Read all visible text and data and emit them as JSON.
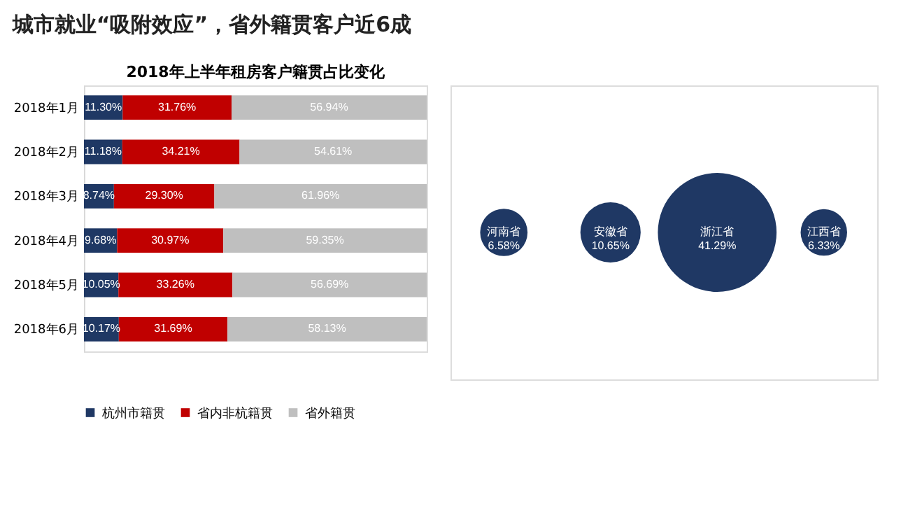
{
  "chart_data": [
    {
      "type": "bar",
      "orientation": "horizontal",
      "stacked": true,
      "title": "2018年上半年租房客户籍贯占比变化",
      "annotations": [
        "城市就业“吸附效应”，省外籍贯客户近6成"
      ],
      "categories": [
        "2018年1月",
        "2018年2月",
        "2018年3月",
        "2018年4月",
        "2018年5月",
        "2018年6月"
      ],
      "series": [
        {
          "name": "杭州市籍贯",
          "color": "#1f3864",
          "values": [
            11.3,
            11.18,
            8.74,
            9.68,
            10.05,
            10.17
          ],
          "value_labels": [
            "11.30%",
            "11.18%",
            "8.74%",
            "9.68%",
            "10.05%",
            "10.17%"
          ]
        },
        {
          "name": "省内非杭籍贯",
          "color": "#c00000",
          "values": [
            31.76,
            34.21,
            29.3,
            30.97,
            33.26,
            31.69
          ],
          "value_labels": [
            "31.76%",
            "34.21%",
            "29.30%",
            "30.97%",
            "33.26%",
            "31.69%"
          ]
        },
        {
          "name": "省外籍贯",
          "color": "#bfbfbf",
          "values": [
            56.94,
            54.61,
            61.96,
            59.35,
            56.69,
            58.13
          ],
          "value_labels": [
            "56.94%",
            "54.61%",
            "61.96%",
            "59.35%",
            "56.69%",
            "58.13%"
          ]
        }
      ],
      "legend": "bottom",
      "tick_labels": "y"
    },
    {
      "type": "other",
      "categories": [
        "河南省",
        "安徽省",
        "浙江省",
        "江西省"
      ],
      "values": [
        6.58,
        10.65,
        41.29,
        6.33
      ],
      "value_labels": [
        "6.58%",
        "10.65%",
        "41.29%",
        "6.33%"
      ],
      "color": "#1f3864"
    }
  ]
}
